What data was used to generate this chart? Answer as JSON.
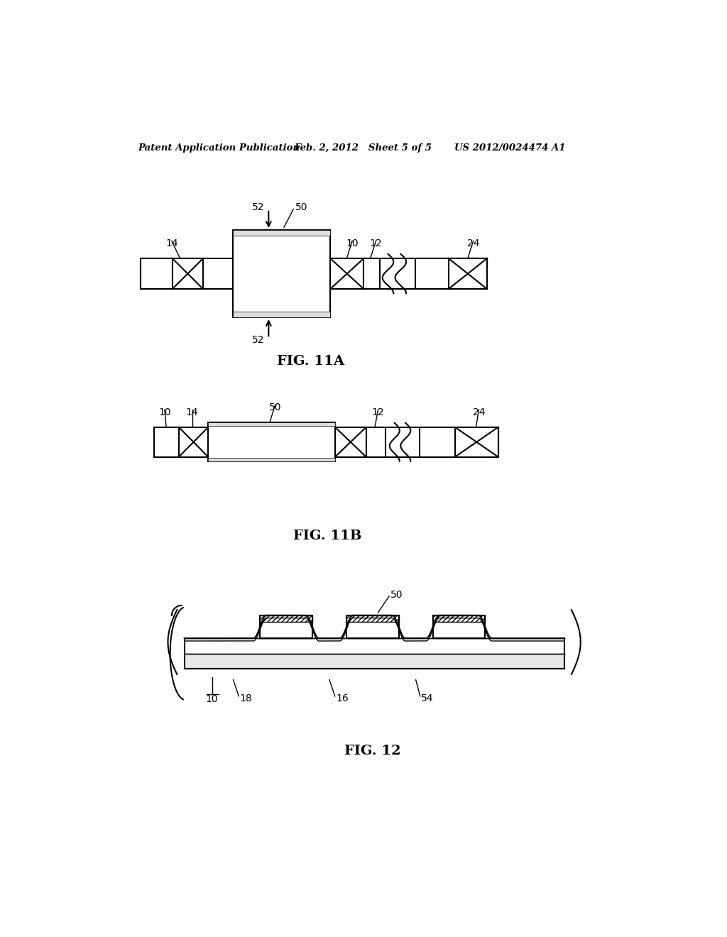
{
  "bg_color": "#ffffff",
  "header_left": "Patent Application Publication",
  "header_center": "Feb. 2, 2012   Sheet 5 of 5",
  "header_right": "US 2012/0024474 A1",
  "fig11a_label": "FIG. 11A",
  "fig11b_label": "FIG. 11B",
  "fig12_label": "FIG. 12",
  "line_color": "#000000",
  "lw": 1.5,
  "lw_thin": 1.0,
  "lw_med": 1.2
}
